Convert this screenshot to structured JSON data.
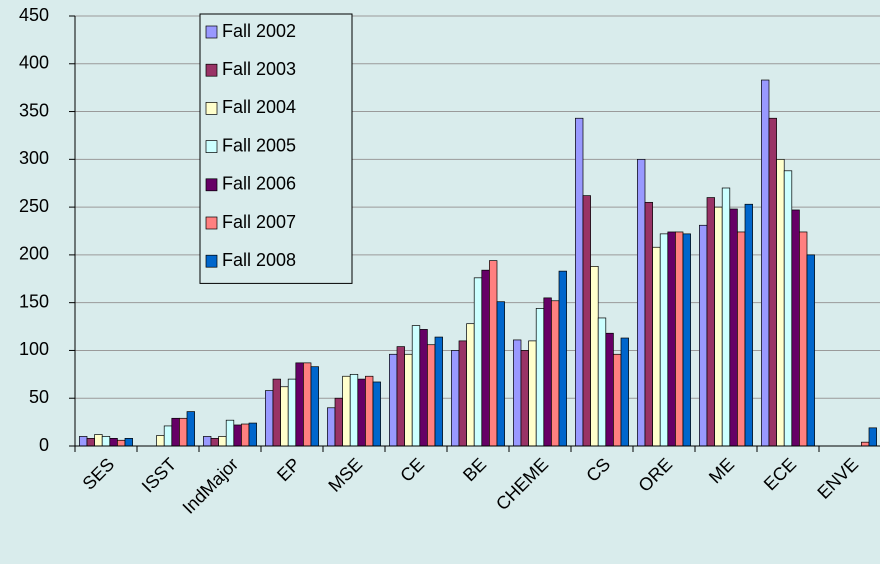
{
  "chart_data": {
    "type": "bar",
    "categories": [
      "SES",
      "ISST",
      "IndMajor",
      "EP",
      "MSE",
      "CE",
      "BE",
      "CHEME",
      "CS",
      "ORE",
      "ME",
      "ECE",
      "ENVE"
    ],
    "series": [
      {
        "name": "Fall 2002",
        "color": "#9999ff",
        "values": [
          10,
          0,
          10,
          58,
          40,
          96,
          100,
          111,
          343,
          300,
          231,
          383,
          0
        ]
      },
      {
        "name": "Fall 2003",
        "color": "#993366",
        "values": [
          8,
          0,
          8,
          70,
          50,
          104,
          110,
          100,
          262,
          255,
          260,
          343,
          0
        ]
      },
      {
        "name": "Fall 2004",
        "color": "#ffffcc",
        "values": [
          12,
          11,
          10,
          62,
          73,
          96,
          128,
          110,
          188,
          208,
          250,
          300,
          0
        ]
      },
      {
        "name": "Fall 2005",
        "color": "#ccffff",
        "values": [
          10,
          21,
          27,
          70,
          75,
          126,
          176,
          144,
          134,
          222,
          270,
          288,
          0
        ]
      },
      {
        "name": "Fall 2006",
        "color": "#660066",
        "values": [
          8,
          29,
          22,
          87,
          70,
          122,
          184,
          155,
          118,
          224,
          248,
          247,
          0
        ]
      },
      {
        "name": "Fall 2007",
        "color": "#ff8080",
        "values": [
          6,
          29,
          23,
          87,
          73,
          106,
          194,
          152,
          96,
          224,
          224,
          224,
          4
        ]
      },
      {
        "name": "Fall 2008",
        "color": "#0066cc",
        "values": [
          8,
          36,
          24,
          83,
          67,
          114,
          151,
          183,
          113,
          222,
          253,
          200,
          19
        ]
      }
    ],
    "ylim": [
      0,
      450
    ],
    "yticks": [
      0,
      50,
      100,
      150,
      200,
      250,
      300,
      350,
      400,
      450
    ],
    "grid": true
  }
}
